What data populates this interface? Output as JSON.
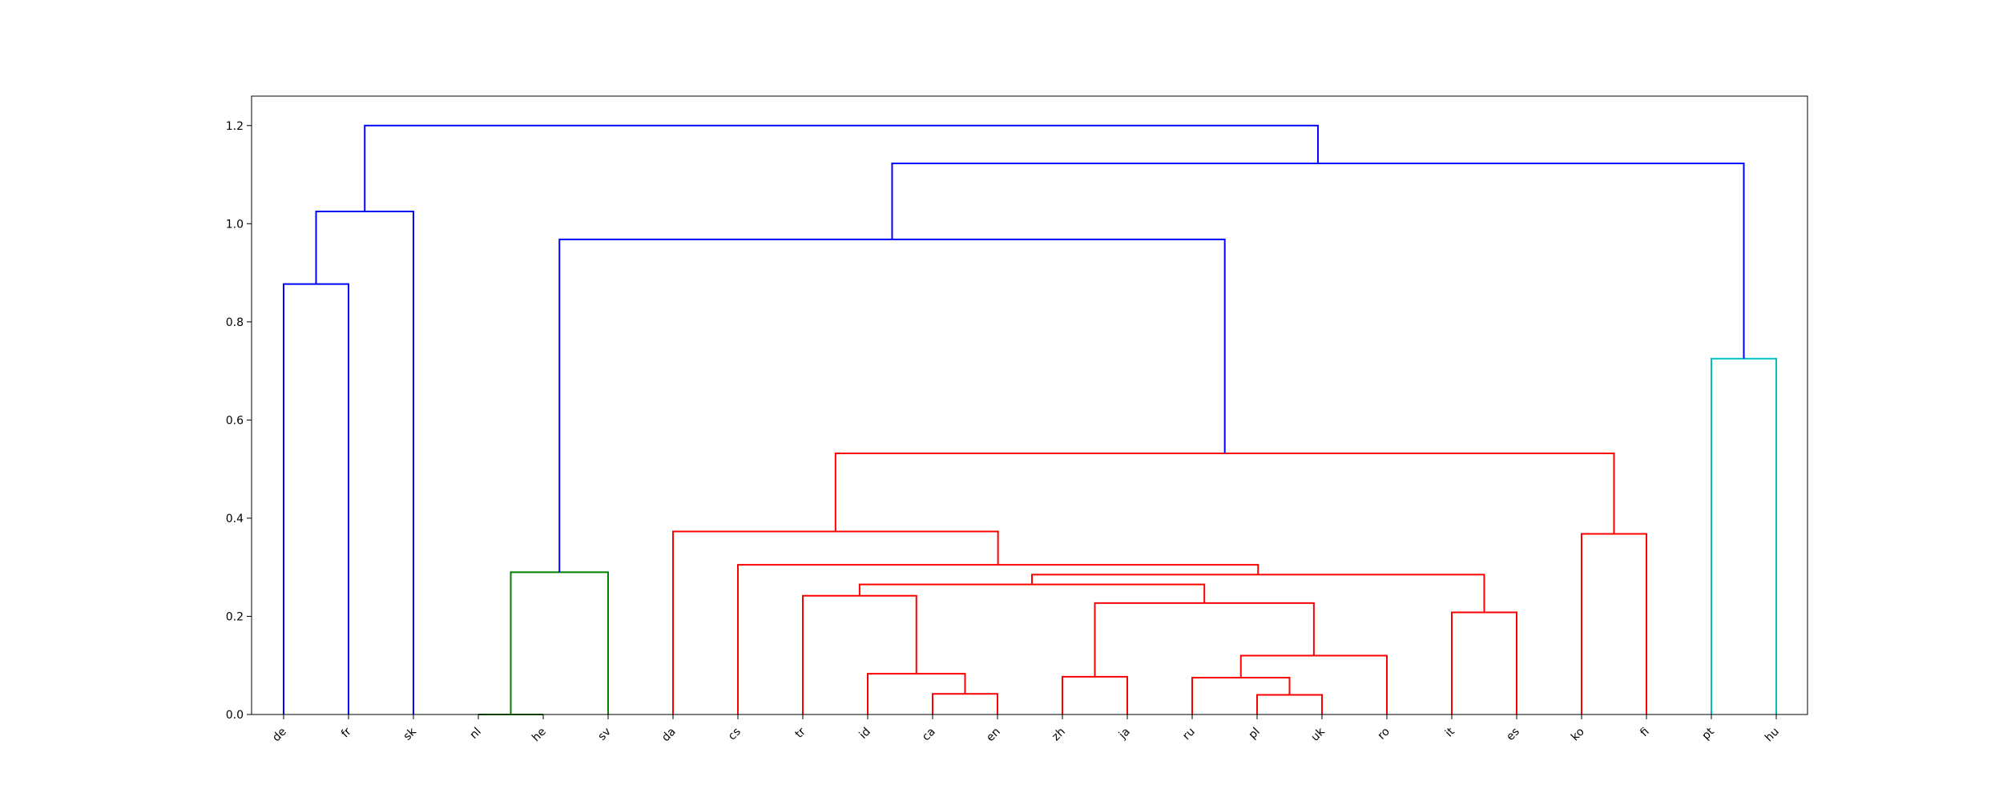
{
  "chart_data": {
    "type": "dendrogram",
    "title": "",
    "xlabel": "",
    "ylabel": "",
    "ylim": [
      0,
      1.26
    ],
    "y_ticks": [
      "0.0",
      "0.2",
      "0.4",
      "0.6",
      "0.8",
      "1.0",
      "1.2"
    ],
    "grid": false,
    "leaves": [
      "de",
      "fr",
      "sk",
      "nl",
      "he",
      "sv",
      "da",
      "cs",
      "tr",
      "id",
      "ca",
      "en",
      "zh",
      "ja",
      "ru",
      "pl",
      "uk",
      "ro",
      "it",
      "es",
      "ko",
      "fi",
      "pt",
      "hu"
    ],
    "colors": {
      "blue": "#0000ff",
      "green": "#008000",
      "red": "#ff0000",
      "cyan": "#00bfbf"
    },
    "links": [
      {
        "left": 0,
        "right": 1,
        "left_height": 0,
        "right_height": 0,
        "height": 0.877,
        "color": "blue"
      },
      {
        "left": 0.5,
        "right": 2,
        "left_height": 0.877,
        "right_height": 0,
        "height": 1.025,
        "color": "blue"
      },
      {
        "left": 3,
        "right": 4,
        "left_height": 0,
        "right_height": 0,
        "height": 0.0,
        "color": "green"
      },
      {
        "left": 3.5,
        "right": 5,
        "left_height": 0,
        "right_height": 0,
        "height": 0.29,
        "color": "green"
      },
      {
        "left": 10,
        "right": 11,
        "left_height": 0,
        "right_height": 0,
        "height": 0.042,
        "color": "red"
      },
      {
        "left": 9,
        "right": 10.5,
        "left_height": 0,
        "right_height": 0.042,
        "height": 0.083,
        "color": "red"
      },
      {
        "left": 8,
        "right": 9.75,
        "left_height": 0,
        "right_height": 0.083,
        "height": 0.242,
        "color": "red"
      },
      {
        "left": 12,
        "right": 13,
        "left_height": 0,
        "right_height": 0,
        "height": 0.077,
        "color": "red"
      },
      {
        "left": 15,
        "right": 16,
        "left_height": 0,
        "right_height": 0,
        "height": 0.04,
        "color": "red"
      },
      {
        "left": 14,
        "right": 15.5,
        "left_height": 0,
        "right_height": 0.04,
        "height": 0.075,
        "color": "red"
      },
      {
        "left": 14.75,
        "right": 17,
        "left_height": 0.075,
        "right_height": 0,
        "height": 0.12,
        "color": "red"
      },
      {
        "left": 12.5,
        "right": 15.875,
        "left_height": 0.077,
        "right_height": 0.12,
        "height": 0.227,
        "color": "red"
      },
      {
        "left": 8.875,
        "right": 14.1875,
        "left_height": 0.242,
        "right_height": 0.227,
        "height": 0.265,
        "color": "red"
      },
      {
        "left": 18,
        "right": 19,
        "left_height": 0,
        "right_height": 0,
        "height": 0.208,
        "color": "red"
      },
      {
        "left": 11.53125,
        "right": 18.5,
        "left_height": 0.265,
        "right_height": 0.208,
        "height": 0.285,
        "color": "red"
      },
      {
        "left": 7,
        "right": 15.015625,
        "left_height": 0,
        "right_height": 0.285,
        "height": 0.305,
        "color": "red"
      },
      {
        "left": 6,
        "right": 11.0078125,
        "left_height": 0,
        "right_height": 0.305,
        "height": 0.373,
        "color": "red"
      },
      {
        "left": 20,
        "right": 21,
        "left_height": 0,
        "right_height": 0,
        "height": 0.368,
        "color": "red"
      },
      {
        "left": 8.50390625,
        "right": 20.5,
        "left_height": 0.373,
        "right_height": 0.368,
        "height": 0.532,
        "color": "red"
      },
      {
        "left": 4.25,
        "right": 14.501953125,
        "left_height": 0.29,
        "right_height": 0.532,
        "height": 0.968,
        "color": "blue"
      },
      {
        "left": 22,
        "right": 23,
        "left_height": 0,
        "right_height": 0,
        "height": 0.725,
        "color": "cyan"
      },
      {
        "left": 9.3759765625,
        "right": 22.5,
        "left_height": 0.968,
        "right_height": 0.725,
        "height": 1.123,
        "color": "blue"
      },
      {
        "left": 1.25,
        "right": 15.93798828125,
        "left_height": 1.025,
        "right_height": 1.123,
        "height": 1.2,
        "color": "blue"
      }
    ]
  }
}
